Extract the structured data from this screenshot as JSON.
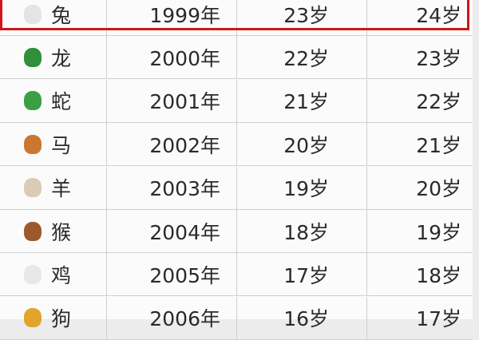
{
  "table": {
    "rows": [
      {
        "zodiac": "兔",
        "icon": "rabbit-icon",
        "icon_color": "#e4e4e8",
        "year": "1999年",
        "age1": "23岁",
        "age2": "24岁",
        "highlighted": true
      },
      {
        "zodiac": "龙",
        "icon": "dragon-icon",
        "icon_color": "#2f8f3a",
        "year": "2000年",
        "age1": "22岁",
        "age2": "23岁"
      },
      {
        "zodiac": "蛇",
        "icon": "snake-icon",
        "icon_color": "#3aa043",
        "year": "2001年",
        "age1": "21岁",
        "age2": "22岁"
      },
      {
        "zodiac": "马",
        "icon": "horse-icon",
        "icon_color": "#c9782e",
        "year": "2002年",
        "age1": "20岁",
        "age2": "21岁"
      },
      {
        "zodiac": "羊",
        "icon": "sheep-icon",
        "icon_color": "#d9cbb4",
        "year": "2003年",
        "age1": "19岁",
        "age2": "20岁"
      },
      {
        "zodiac": "猴",
        "icon": "monkey-icon",
        "icon_color": "#9a5a2e",
        "year": "2004年",
        "age1": "18岁",
        "age2": "19岁"
      },
      {
        "zodiac": "鸡",
        "icon": "rooster-icon",
        "icon_color": "#e8e8e8",
        "year": "2005年",
        "age1": "17岁",
        "age2": "18岁"
      },
      {
        "zodiac": "狗",
        "icon": "dog-icon",
        "icon_color": "#e0a52a",
        "year": "2006年",
        "age1": "16岁",
        "age2": "17岁"
      }
    ],
    "highlight_color": "#d0151b"
  }
}
